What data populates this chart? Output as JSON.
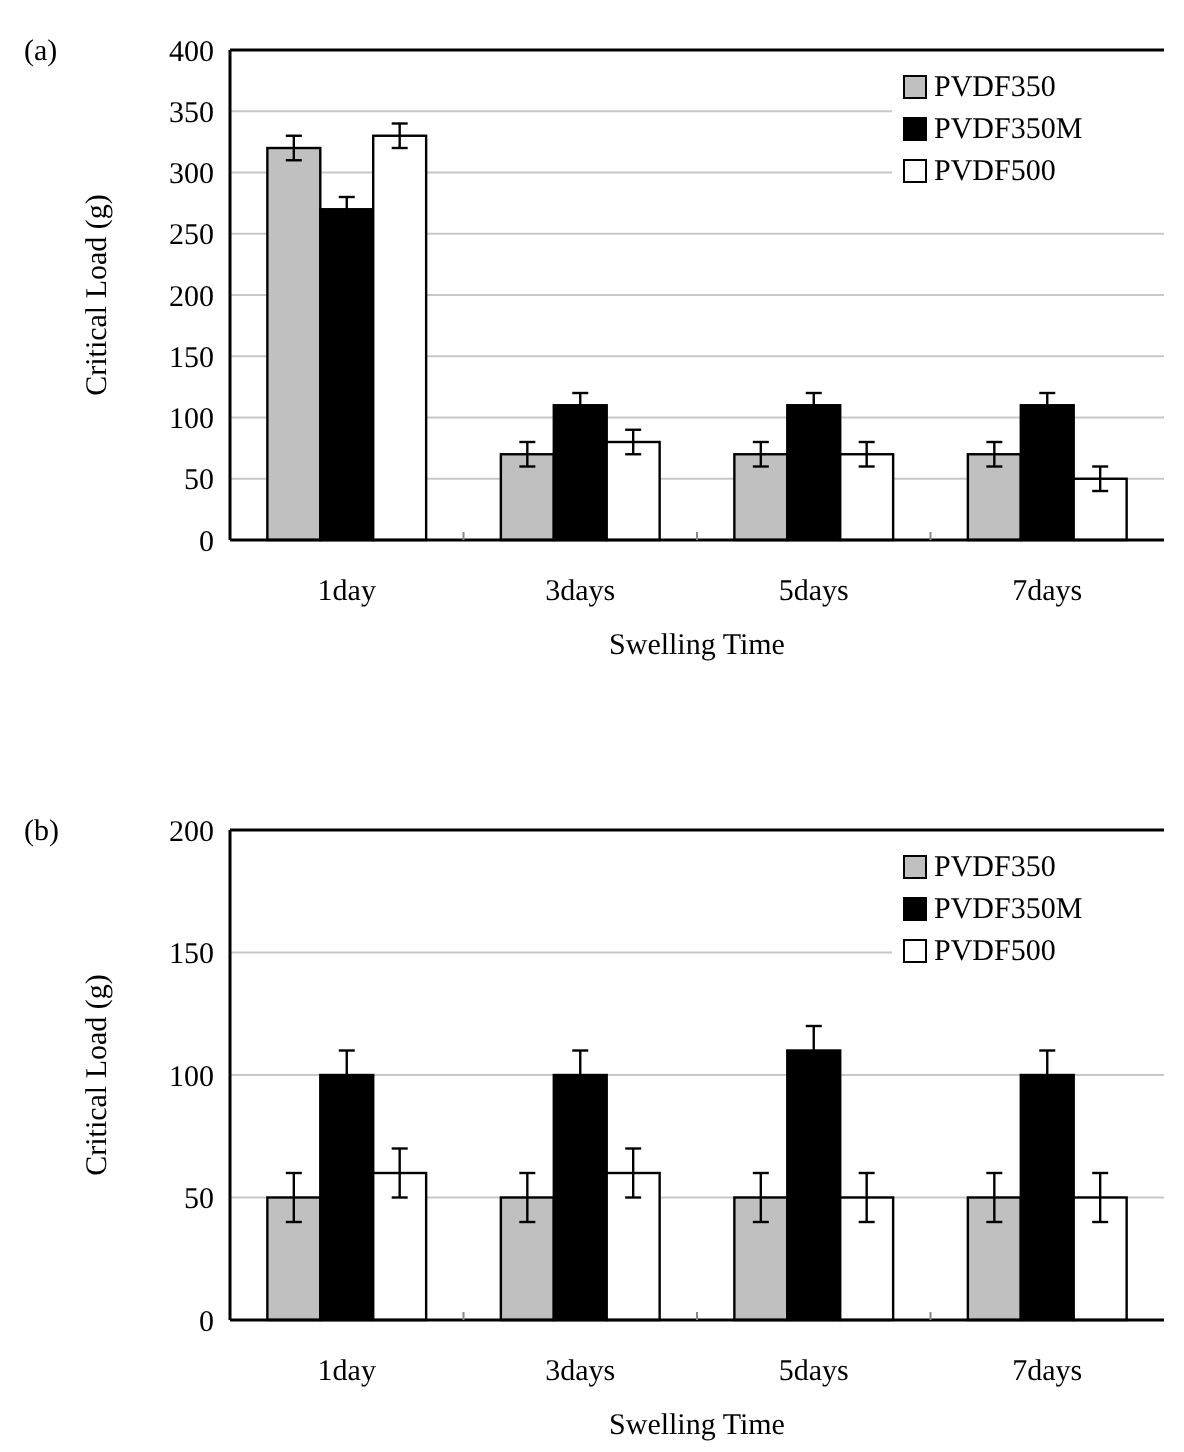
{
  "chart_data": [
    {
      "type": "bar",
      "title": "(a)",
      "xlabel": "Swelling Time",
      "ylabel": "Critical Load (g)",
      "categories": [
        "1day",
        "3days",
        "5days",
        "7days"
      ],
      "series": [
        {
          "name": "PVDF350",
          "color": "#c0c0c0",
          "values": [
            320,
            70,
            70,
            70
          ],
          "errors": [
            10,
            10,
            10,
            10
          ]
        },
        {
          "name": "PVDF350M",
          "color": "#000000",
          "values": [
            270,
            110,
            110,
            110
          ],
          "errors": [
            10,
            10,
            10,
            10
          ]
        },
        {
          "name": "PVDF500",
          "color": "#ffffff",
          "values": [
            330,
            80,
            70,
            50
          ],
          "errors": [
            10,
            10,
            10,
            10
          ]
        }
      ],
      "ylim": [
        0,
        400
      ],
      "yticks": [
        0,
        50,
        100,
        150,
        200,
        250,
        300,
        350,
        400
      ],
      "grid": "y",
      "legend": "top right"
    },
    {
      "type": "bar",
      "title": "(b)",
      "xlabel": "Swelling Time",
      "ylabel": "Critical Load (g)",
      "categories": [
        "1day",
        "3days",
        "5days",
        "7days"
      ],
      "series": [
        {
          "name": "PVDF350",
          "color": "#c0c0c0",
          "values": [
            50,
            50,
            50,
            50
          ],
          "errors": [
            10,
            10,
            10,
            10
          ]
        },
        {
          "name": "PVDF350M",
          "color": "#000000",
          "values": [
            100,
            100,
            110,
            100
          ],
          "errors": [
            10,
            10,
            10,
            10
          ]
        },
        {
          "name": "PVDF500",
          "color": "#ffffff",
          "values": [
            60,
            60,
            50,
            50
          ],
          "errors": [
            10,
            10,
            10,
            10
          ]
        }
      ],
      "ylim": [
        0,
        200
      ],
      "yticks": [
        0,
        50,
        100,
        150,
        200
      ],
      "grid": "y",
      "legend": "top right"
    }
  ]
}
